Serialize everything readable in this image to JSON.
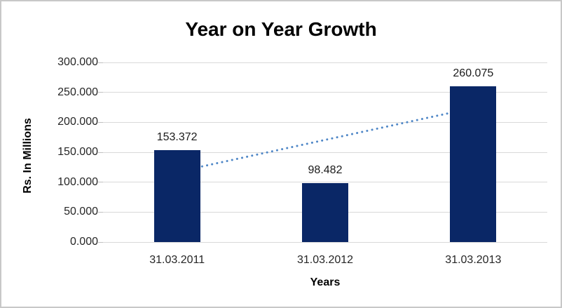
{
  "figure": {
    "background": "#ffffff",
    "border_color": "#c8c8c8"
  },
  "chart_data": {
    "type": "bar",
    "title": "Year on Year Growth",
    "xlabel": "Years",
    "ylabel": "Rs. In Millions",
    "categories": [
      "31.03.2011",
      "31.03.2012",
      "31.03.2013"
    ],
    "values": [
      153.372,
      98.482,
      260.075
    ],
    "data_labels": [
      "153.372",
      "98.482",
      "260.075"
    ],
    "ylim": [
      0,
      300
    ],
    "ytick_step": 50,
    "ytick_labels": [
      "0.000",
      "50.000",
      "100.000",
      "150.000",
      "200.000",
      "250.000",
      "300.000"
    ],
    "grid": true,
    "legend": "none",
    "colors": {
      "bar": "#0a2766",
      "gridline": "#d9d9d9",
      "tick": "#c0c0c0",
      "trendline": "#4f87c7"
    },
    "trendline": {
      "type": "linear",
      "style": "dotted",
      "start_category_index": 0,
      "end_category_index": 2,
      "start_value": 117.3,
      "end_value": 224.0
    }
  }
}
